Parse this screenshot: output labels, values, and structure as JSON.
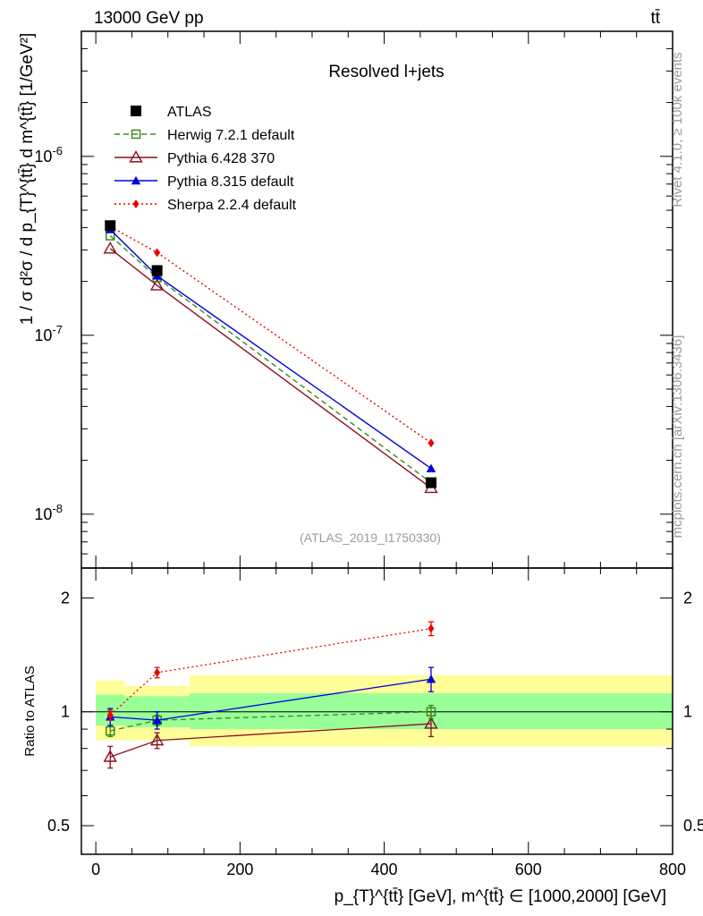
{
  "header": {
    "beam": "13000 GeV pp",
    "process": "tt̄"
  },
  "side_labels": {
    "rivet": "Rivet 4.1.0, ≥ 100k events",
    "mcplots": "mcplots.cern.ch [arXiv:1306.3436]"
  },
  "colors": {
    "ATLAS": "#000000",
    "Herwig": "#3a8a1a",
    "Pythia6": "#8b0f1f",
    "Pythia8": "#0000dd",
    "Sherpa": "#ee0000",
    "band_inner": "#99ff99",
    "band_outer": "#ffff99"
  },
  "chart_data": [
    {
      "type": "line",
      "panel": "main",
      "title": "Resolved l+jets",
      "watermark": "(ATLAS_2019_I1750330)",
      "ylabel": "1 / σ d²σ / d p_{T}^{tt̄} d m^{tt̄} [1/GeV²]",
      "yscale": "log",
      "ylim": [
        5e-09,
        5e-06
      ],
      "xlim": [
        -20,
        800
      ],
      "ytick_labels": [
        "10^-8",
        "10^-7",
        "10^-6"
      ],
      "ytick_values": [
        1e-08,
        1e-07,
        1e-06
      ],
      "legend_position": "top-left",
      "x": [
        20,
        85,
        465
      ],
      "series": [
        {
          "name": "ATLAS",
          "key": "ATLAS",
          "values": [
            4.1e-07,
            2.3e-07,
            1.5e-08
          ],
          "marker": "square-filled",
          "line": "none"
        },
        {
          "name": "Herwig 7.2.1 default",
          "key": "Herwig",
          "values": [
            3.6e-07,
            2.1e-07,
            1.5e-08
          ],
          "marker": "square-open",
          "line": "dashed"
        },
        {
          "name": "Pythia 6.428 370",
          "key": "Pythia6",
          "values": [
            3.05e-07,
            1.9e-07,
            1.4e-08
          ],
          "marker": "triangle-open",
          "line": "solid"
        },
        {
          "name": "Pythia 8.315 default",
          "key": "Pythia8",
          "values": [
            3.9e-07,
            2.15e-07,
            1.8e-08
          ],
          "marker": "triangle-filled",
          "line": "solid"
        },
        {
          "name": "Sherpa 2.2.4 default",
          "key": "Sherpa",
          "values": [
            4.05e-07,
            2.9e-07,
            2.5e-08
          ],
          "marker": "diamond-filled",
          "line": "dotted"
        }
      ]
    },
    {
      "type": "line",
      "panel": "ratio",
      "ylabel": "Ratio to ATLAS",
      "xlabel": "p_{T}^{tt̄} [GeV], m^{tt̄} ∈ [1000,2000] [GeV]",
      "yscale": "log",
      "ylim": [
        0.42,
        2.4
      ],
      "xlim": [
        -20,
        800
      ],
      "xtick_labels": [
        "0",
        "200",
        "400",
        "600",
        "800"
      ],
      "xtick_values": [
        0,
        200,
        400,
        600,
        800
      ],
      "ytick_labels": [
        "0.5",
        "1",
        "2"
      ],
      "ytick_values": [
        0.5,
        1,
        2
      ],
      "x": [
        20,
        85,
        465
      ],
      "bands": [
        {
          "xmin": 0,
          "xmax": 40,
          "inner": [
            0.92,
            1.11
          ],
          "outer": [
            0.84,
            1.21
          ]
        },
        {
          "xmin": 40,
          "xmax": 130,
          "inner": [
            0.91,
            1.1
          ],
          "outer": [
            0.84,
            1.17
          ]
        },
        {
          "xmin": 130,
          "xmax": 800,
          "inner": [
            0.9,
            1.12
          ],
          "outer": [
            0.81,
            1.25
          ]
        }
      ],
      "series": [
        {
          "name": "Herwig 7.2.1 default",
          "key": "Herwig",
          "values": [
            0.89,
            0.95,
            1.0
          ],
          "errors": [
            0.03,
            0.03,
            0.04
          ],
          "marker": "square-open",
          "line": "dashed"
        },
        {
          "name": "Pythia 6.428 370",
          "key": "Pythia6",
          "values": [
            0.76,
            0.84,
            0.93
          ],
          "errors": [
            0.05,
            0.04,
            0.07
          ],
          "marker": "triangle-open",
          "line": "solid"
        },
        {
          "name": "Pythia 8.315 default",
          "key": "Pythia8",
          "values": [
            0.97,
            0.95,
            1.22
          ],
          "errors": [
            0.05,
            0.05,
            0.09
          ],
          "marker": "triangle-filled",
          "line": "solid"
        },
        {
          "name": "Sherpa 2.2.4 default",
          "key": "Sherpa",
          "values": [
            0.98,
            1.27,
            1.66
          ],
          "errors": [
            0.03,
            0.04,
            0.07
          ],
          "marker": "diamond-filled",
          "line": "dotted"
        }
      ]
    }
  ]
}
